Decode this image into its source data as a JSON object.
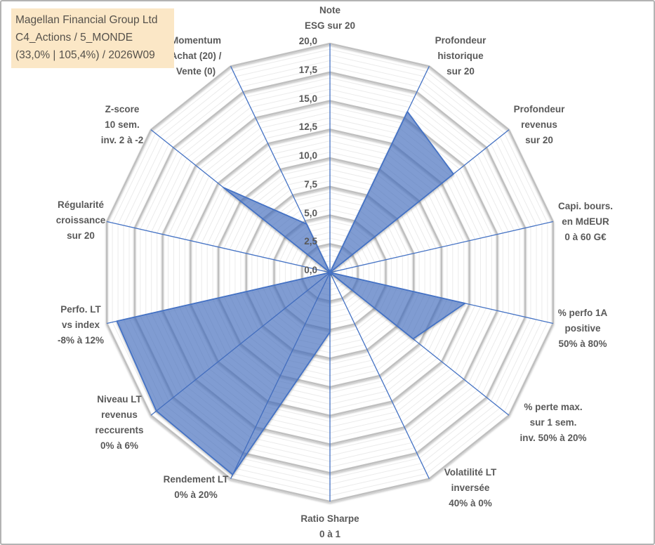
{
  "window": {
    "background": "#FFFFFF",
    "border_color": "#B3B3B3"
  },
  "title_box": {
    "text": "Magellan Financial Group Ltd\nC4_Actions / 5_MONDE\n(33,0% | 105,4%) / 2026W09",
    "background": "#FBE7C6",
    "text_color": "#55514B"
  },
  "chart_data": {
    "type": "radar",
    "title": "",
    "legend": "none",
    "grid": true,
    "r_axis": {
      "min": 0,
      "max": 20,
      "major_unit": 2.5,
      "minor_unit": 0.5,
      "tick_labels": [
        "20,0",
        "17,5",
        "15,0",
        "12,5",
        "10,0",
        "7,5",
        "5,0",
        "2,5",
        "0,0"
      ]
    },
    "categories": [
      "Note\nESG sur 20",
      "Profondeur\nhistorique\nsur 20",
      "Profondeur\nrevenus\nsur 20",
      "Capi. bours.\nen MdEUR\n0 à 60 G€",
      "% perfo 1A\npositive\n50% à 80%",
      "% perte max.\nsur 1 sem.\ninv. 50% à 20%",
      "Volatilité LT\ninversée\n40% à 0%",
      "Ratio Sharpe\n0 à 1",
      "Rendement LT\n0% à 20%",
      "Niveau LT\nrevenus\nreccurents\n0% à 6%",
      "Perfo. LT\nvs index\n-8% à 12%",
      "Régularité\ncroissance\nsur 20",
      "Z-score\n10 sem.\ninv. 2 à -2",
      "Momentum\nAchat (20) /\nVente (0)"
    ],
    "series": [
      {
        "name": "Magellan Financial Group Ltd",
        "values": [
          0,
          15.6,
          13.8,
          0,
          12.1,
          9.3,
          0,
          5.2,
          19.6,
          19.4,
          19.1,
          0,
          11.9,
          4.7
        ]
      }
    ],
    "colors": {
      "fill": "rgba(68,114,196,0.60)",
      "stroke": "#4472C4",
      "spokes": "#4472C4",
      "grid_major": "#BFBFBF",
      "grid_minor": "#EBEBEB",
      "tick_text": "#595959",
      "label_text": "#595959"
    }
  }
}
